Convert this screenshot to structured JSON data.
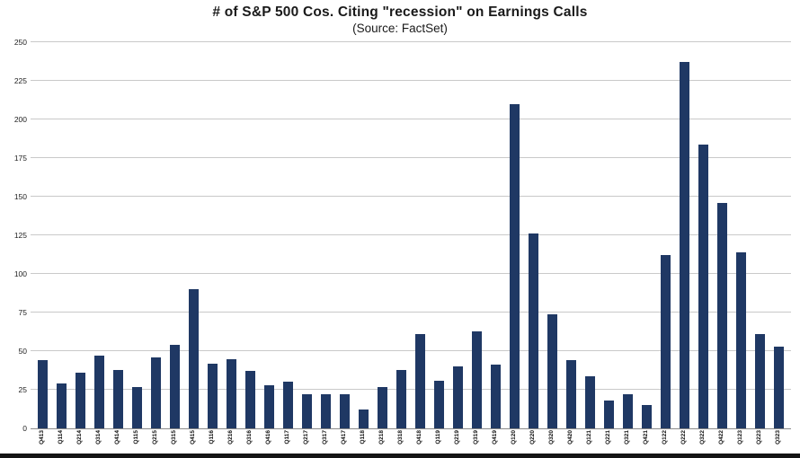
{
  "title": "# of S&P 500 Cos. Citing \"recession\" on Earnings Calls",
  "subtitle": "(Source: FactSet)",
  "chart_data": {
    "type": "bar",
    "title": "# of S&P 500 Cos. Citing \"recession\" on Earnings Calls",
    "subtitle": "(Source: FactSet)",
    "xlabel": "",
    "ylabel": "",
    "ylim": [
      0,
      250
    ],
    "yticks": [
      0,
      25,
      50,
      75,
      100,
      125,
      150,
      175,
      200,
      225,
      250
    ],
    "grid": true,
    "legend": false,
    "bar_color": "#1f3864",
    "categories": [
      "Q413",
      "Q114",
      "Q214",
      "Q314",
      "Q414",
      "Q115",
      "Q215",
      "Q315",
      "Q415",
      "Q116",
      "Q216",
      "Q316",
      "Q416",
      "Q117",
      "Q217",
      "Q317",
      "Q417",
      "Q118",
      "Q218",
      "Q318",
      "Q418",
      "Q119",
      "Q219",
      "Q319",
      "Q419",
      "Q120",
      "Q220",
      "Q320",
      "Q420",
      "Q121",
      "Q221",
      "Q321",
      "Q421",
      "Q122",
      "Q222",
      "Q322",
      "Q422",
      "Q123",
      "Q223",
      "Q323"
    ],
    "values": [
      44,
      29,
      36,
      47,
      38,
      27,
      46,
      54,
      90,
      42,
      45,
      37,
      28,
      30,
      22,
      22,
      22,
      12,
      27,
      38,
      61,
      31,
      40,
      63,
      41,
      210,
      126,
      74,
      44,
      34,
      18,
      22,
      15,
      112,
      237,
      184,
      146,
      114,
      61,
      53
    ]
  }
}
